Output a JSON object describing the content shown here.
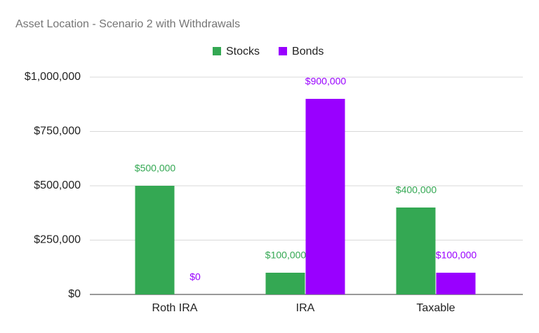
{
  "chart_data": {
    "type": "bar",
    "title": "Asset Location - Scenario 2 with Withdrawals",
    "categories": [
      "Roth IRA",
      "IRA",
      "Taxable"
    ],
    "series": [
      {
        "name": "Stocks",
        "color": "#34a853",
        "values": [
          500000,
          100000,
          400000
        ],
        "value_labels": [
          "$500,000",
          "$100,000",
          "$400,000"
        ]
      },
      {
        "name": "Bonds",
        "color": "#9900ff",
        "values": [
          0,
          900000,
          100000
        ],
        "value_labels": [
          "$0",
          "$900,000",
          "$100,000"
        ]
      }
    ],
    "ylim": [
      0,
      1000000
    ],
    "yticks": [
      {
        "value": 0,
        "label": "$0"
      },
      {
        "value": 250000,
        "label": "$250,000"
      },
      {
        "value": 500000,
        "label": "$500,000"
      },
      {
        "value": 750000,
        "label": "$750,000"
      },
      {
        "value": 1000000,
        "label": "$1,000,000"
      }
    ],
    "grid": true,
    "legend": "top"
  }
}
